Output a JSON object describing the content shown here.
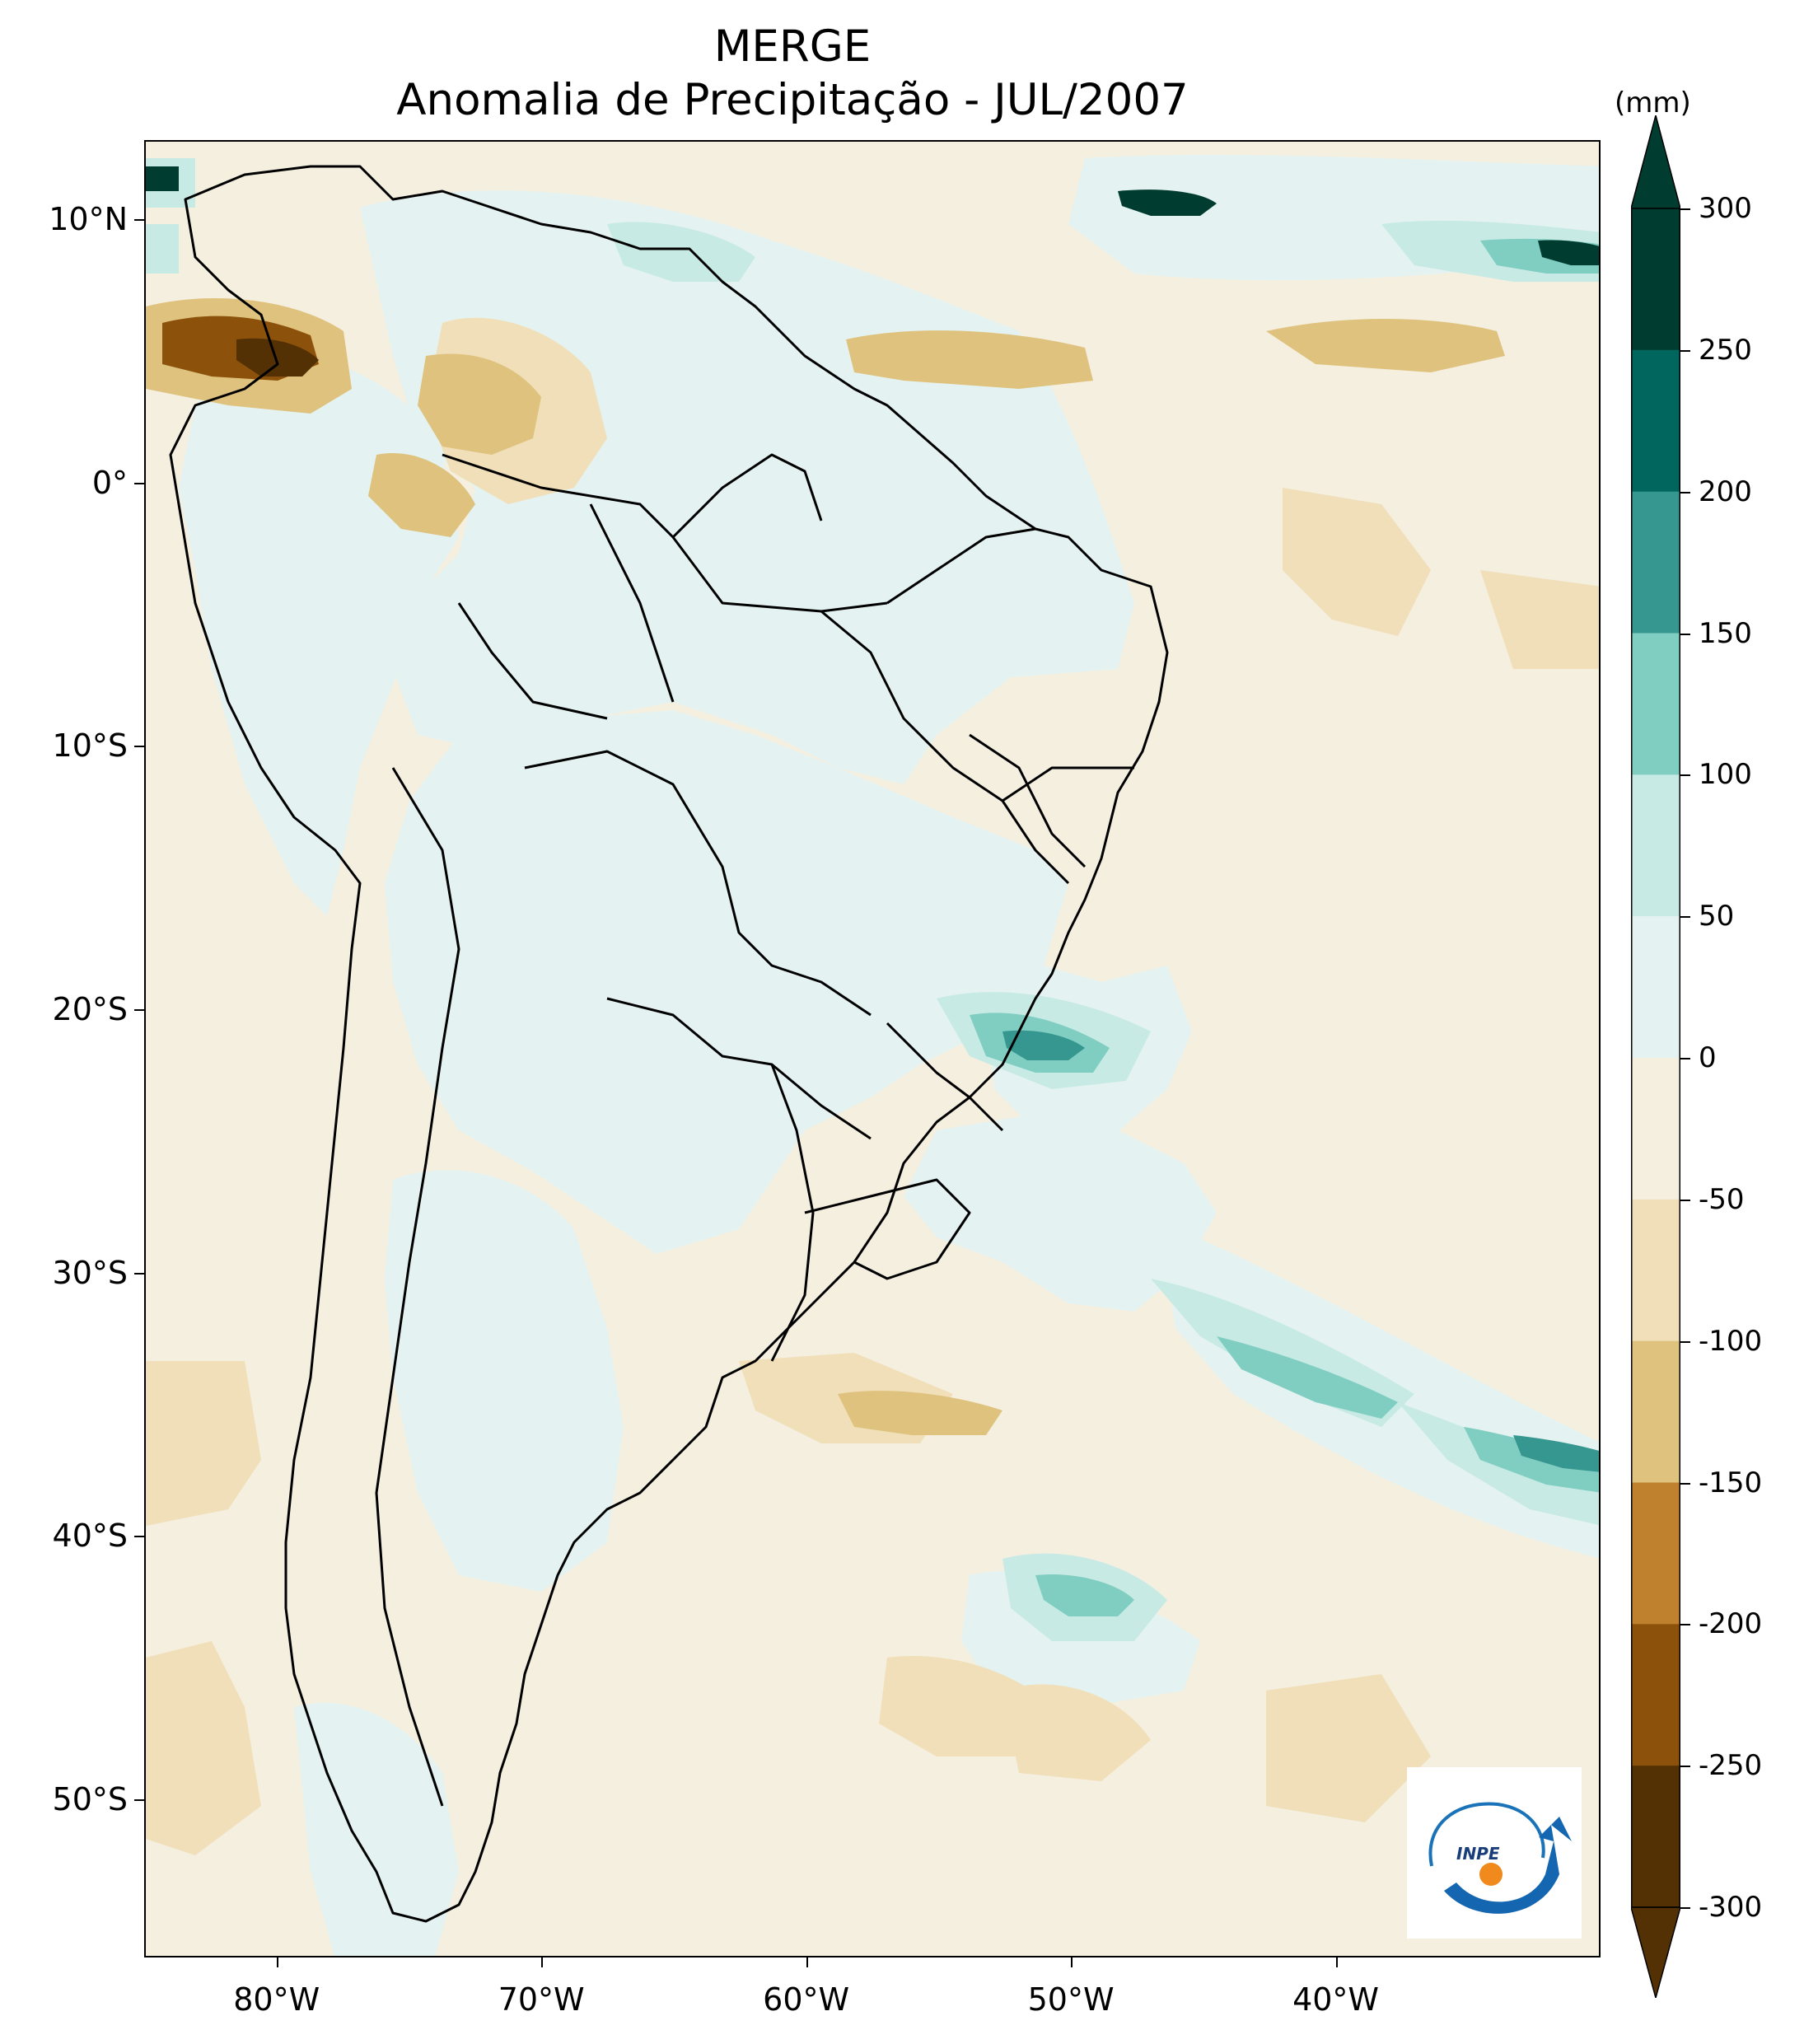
{
  "title": {
    "line1": "MERGE",
    "line2": "Anomalia de Precipitação - JUL/2007"
  },
  "map": {
    "lon_range": [
      -85,
      -30
    ],
    "lat_range": [
      -56,
      13
    ],
    "lat_ticks": [
      "10°N",
      "0°",
      "10°S",
      "20°S",
      "30°S",
      "40°S",
      "50°S"
    ],
    "lat_tick_values": [
      10,
      0,
      -10,
      -20,
      -30,
      -40,
      -50
    ],
    "lon_ticks": [
      "80°W",
      "70°W",
      "60°W",
      "50°W",
      "40°W"
    ],
    "lon_tick_values": [
      -80,
      -70,
      -60,
      -50,
      -40
    ],
    "field": "precipitation anomaly"
  },
  "colorbar": {
    "unit": "(mm)",
    "ticks": [
      "300",
      "250",
      "200",
      "150",
      "100",
      "50",
      "0",
      "-50",
      "-100",
      "-150",
      "-200",
      "-250",
      "-300"
    ],
    "tick_values": [
      300,
      250,
      200,
      150,
      100,
      50,
      0,
      -50,
      -100,
      -150,
      -200,
      -250,
      -300
    ],
    "colors": [
      "#003c30",
      "#01665e",
      "#35978f",
      "#80cdc1",
      "#c7eae5",
      "#e4f3f1",
      "#f5efe0",
      "#f0dfb8",
      "#dfc27d",
      "#bf812d",
      "#8c510a",
      "#543005"
    ],
    "extend": "both"
  },
  "logo": {
    "text": "INPE"
  }
}
